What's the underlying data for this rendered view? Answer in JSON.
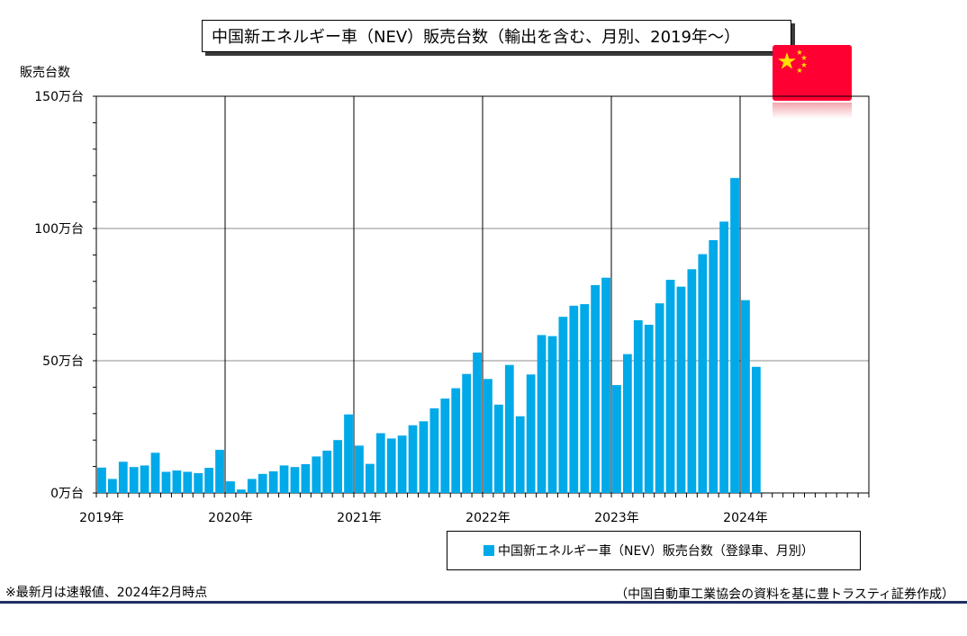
{
  "title": "中国新エネルギー車（NEV）販売台数（輸出を含む、月別、2019年～）",
  "flag": {
    "name": "china-flag",
    "red": "#FF0033",
    "star": "#FFDE00"
  },
  "chart_data": {
    "type": "bar",
    "ylabel": "販売台数",
    "ylim": [
      0,
      150
    ],
    "y_ticks": [
      {
        "value": 0,
        "label": "0万台"
      },
      {
        "value": 50,
        "label": "50万台"
      },
      {
        "value": 100,
        "label": "100万台"
      },
      {
        "value": 150,
        "label": "150万台"
      }
    ],
    "x_year_labels": [
      "2019年",
      "2020年",
      "2021年",
      "2022年",
      "2023年",
      "2024年"
    ],
    "months_total": 72,
    "grid": true,
    "series": [
      {
        "name": "中国新エネルギー車（NEV）販売台数（登録車、月別）",
        "color": "#00A9E8",
        "start": "2019-01",
        "values": [
          9.6,
          5.3,
          11.8,
          9.8,
          10.4,
          15.2,
          8.0,
          8.5,
          8.0,
          7.5,
          9.5,
          16.3,
          4.4,
          1.3,
          5.3,
          7.2,
          8.2,
          10.4,
          9.8,
          10.9,
          13.8,
          16.0,
          20.0,
          29.7,
          17.9,
          11.0,
          22.6,
          20.6,
          21.7,
          25.6,
          27.1,
          32.0,
          35.7,
          39.6,
          45.0,
          53.1,
          43.1,
          33.4,
          48.4,
          29.0,
          44.8,
          59.7,
          59.3,
          66.6,
          70.8,
          71.4,
          78.6,
          81.4,
          40.8,
          52.5,
          65.3,
          63.6,
          71.7,
          80.6,
          78.0,
          84.6,
          90.3,
          95.6,
          102.6,
          119.1,
          72.9,
          47.7
        ]
      }
    ]
  },
  "legend": {
    "label": "中国新エネルギー車（NEV）販売台数（登録車、月別）",
    "placement": "bottom-right"
  },
  "notes": {
    "left": "※最新月は速報値、2024年2月時点",
    "right": "（中国自動車工業協会の資料を基に豊トラスティ証券作成）"
  }
}
